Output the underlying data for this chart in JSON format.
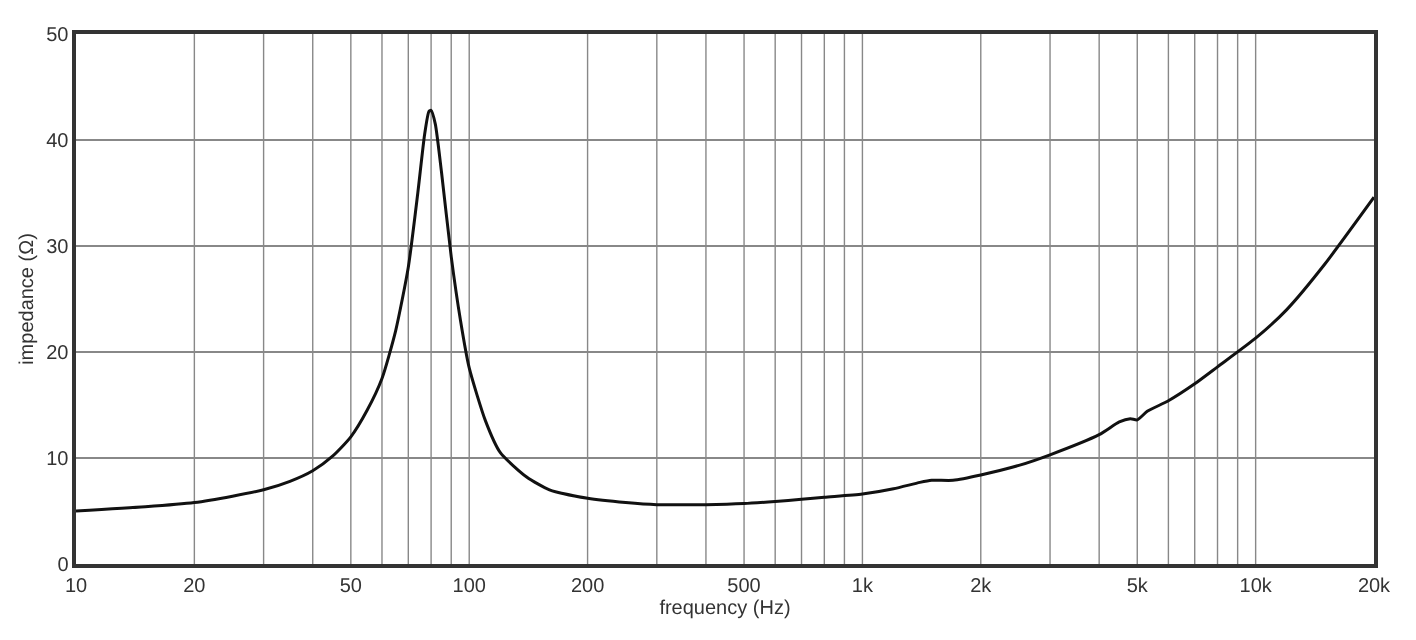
{
  "chart_data": {
    "type": "line",
    "xlabel": "frequency (Hz)",
    "ylabel": "impedance (Ω)",
    "log": "x",
    "grid": true,
    "marker": "none",
    "line_style": "solid",
    "xlim": [
      10,
      20000
    ],
    "ylim": [
      0,
      50
    ],
    "xticks": [
      10,
      20,
      50,
      100,
      200,
      500,
      {
        "value": 1000,
        "label": "1k"
      },
      {
        "value": 2000,
        "label": "2k"
      },
      {
        "value": 5000,
        "label": "5k"
      },
      {
        "value": 10000,
        "label": "10k"
      },
      {
        "value": 20000,
        "label": "20k"
      }
    ],
    "yticks": [
      0,
      10,
      20,
      30,
      40,
      50
    ],
    "x": [
      10,
      15,
      20,
      25,
      30,
      35,
      40,
      45,
      50,
      55,
      60,
      65,
      70,
      74,
      77,
      79,
      80,
      82,
      85,
      90,
      95,
      100,
      110,
      120,
      140,
      160,
      200,
      250,
      300,
      400,
      500,
      600,
      700,
      800,
      1000,
      1200,
      1400,
      1500,
      1700,
      2000,
      2500,
      3000,
      4000,
      4500,
      4800,
      5000,
      5300,
      6000,
      7000,
      8000,
      10000,
      12000,
      15000,
      20000
    ],
    "series": [
      {
        "color": "#111111",
        "values": [
          5.0,
          5.4,
          5.8,
          6.4,
          7.0,
          7.8,
          8.8,
          10.2,
          12.0,
          14.5,
          17.5,
          22.0,
          28.0,
          35.0,
          40.5,
          42.7,
          42.8,
          41.5,
          37.0,
          29.0,
          23.0,
          18.5,
          13.5,
          10.5,
          8.2,
          7.0,
          6.2,
          5.8,
          5.6,
          5.6,
          5.7,
          5.9,
          6.1,
          6.3,
          6.6,
          7.1,
          7.7,
          7.9,
          7.9,
          8.4,
          9.3,
          10.3,
          12.2,
          13.4,
          13.7,
          13.6,
          14.4,
          15.4,
          17.0,
          18.6,
          21.3,
          24.0,
          28.3,
          34.6
        ]
      }
    ]
  }
}
